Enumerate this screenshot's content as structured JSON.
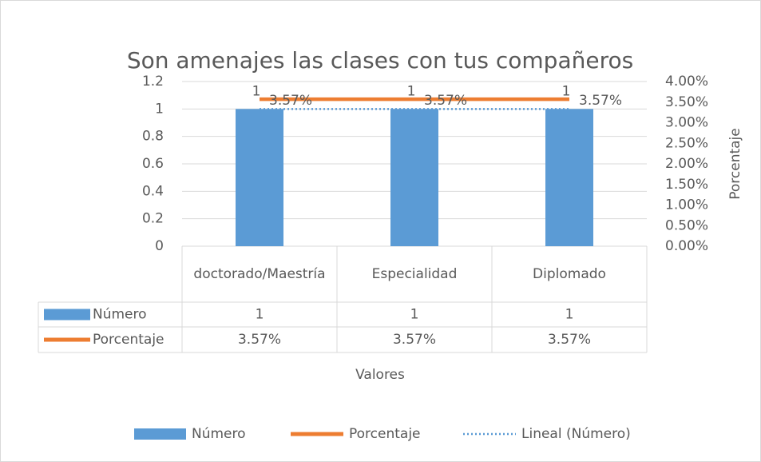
{
  "chart_data": {
    "type": "bar",
    "title": "Son amenajes las clases con tus compañeros",
    "x_label": "Valores",
    "y2_label": "Porcentaje",
    "categories": [
      "doctorado/Maestría",
      "Especialidad",
      "Diplomado"
    ],
    "series": [
      {
        "name": "Número",
        "color": "#5b9bd5",
        "values": [
          1,
          1,
          1
        ]
      },
      {
        "name": "Porcentaje",
        "color": "#ed7d31",
        "axis": "y2",
        "type": "line",
        "values": [
          3.57,
          3.57,
          3.57
        ],
        "value_labels": [
          "3.57%",
          "3.57%",
          "3.57%"
        ]
      }
    ],
    "trendline": {
      "name": "Lineal (Número)",
      "series": 0,
      "color": "#5b9bd5",
      "style": "dotted"
    },
    "ylim": [
      0,
      1.2
    ],
    "yticks": [
      0,
      0.2,
      0.4,
      0.6,
      0.8,
      1,
      1.2
    ],
    "y2lim": [
      0,
      4
    ],
    "y2ticks": [
      {
        "value": 0,
        "label": "0.00%"
      },
      {
        "value": 0.5,
        "label": "0.50%"
      },
      {
        "value": 1,
        "label": "1.00%"
      },
      {
        "value": 1.5,
        "label": "1.50%"
      },
      {
        "value": 2,
        "label": "2.00%"
      },
      {
        "value": 2.5,
        "label": "2.50%"
      },
      {
        "value": 3,
        "label": "3.00%"
      },
      {
        "value": 3.5,
        "label": "3.50%"
      },
      {
        "value": 4,
        "label": "4.00%"
      }
    ],
    "grid": true,
    "data_table": true,
    "legend": "bottom"
  }
}
